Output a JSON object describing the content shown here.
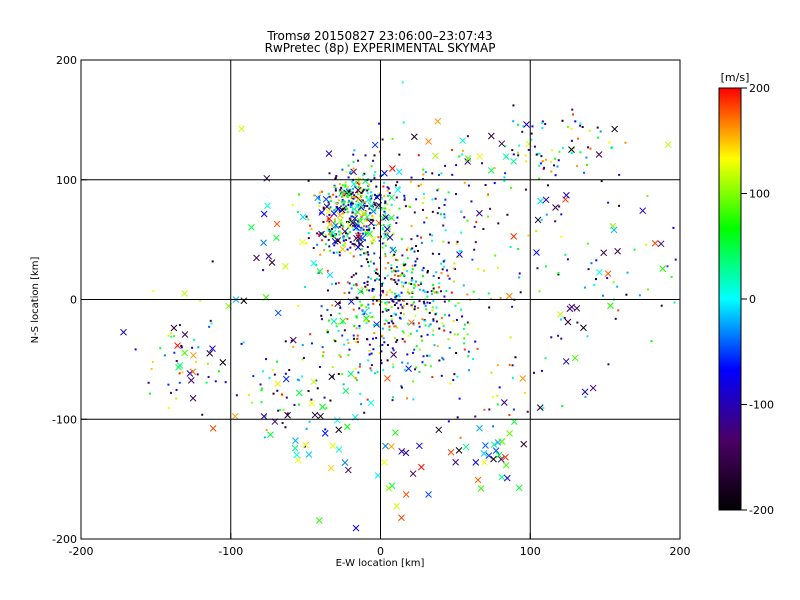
{
  "chart_data": {
    "type": "scatter",
    "title": "Tromsø 20150827 23:06:00–23:07:43",
    "subtitle": "RwPretec (8p) EXPERIMENTAL SKYMAP",
    "xlabel": "E-W location [km]",
    "ylabel": "N-S location [km]",
    "xlim": [
      -200,
      200
    ],
    "ylim": [
      -200,
      200
    ],
    "x_ticks": [
      -200,
      -100,
      0,
      100,
      200
    ],
    "y_ticks": [
      -200,
      -100,
      0,
      100,
      200
    ],
    "grid": true,
    "colorbar": {
      "label": "[m/s]",
      "range": [
        -200,
        200
      ],
      "ticks": [
        200,
        100,
        0,
        -100,
        -200
      ],
      "colormap": [
        "#000000",
        "#4b0066",
        "#0000ff",
        "#00ffff",
        "#00ff00",
        "#ffff00",
        "#ff0000"
      ]
    },
    "series": [
      {
        "marker": "dot",
        "clusters": [
          {
            "x": -15,
            "y": 82,
            "sx": 12,
            "sy": 14,
            "n": 260
          },
          {
            "x": -20,
            "y": 55,
            "sx": 14,
            "sy": 10,
            "n": 120
          },
          {
            "x": 15,
            "y": 10,
            "sx": 20,
            "sy": 18,
            "n": 260
          },
          {
            "x": 0,
            "y": -35,
            "sx": 28,
            "sy": 20,
            "n": 180
          },
          {
            "x": 30,
            "y": 60,
            "sx": 40,
            "sy": 40,
            "n": 200
          },
          {
            "x": 120,
            "y": 130,
            "sx": 22,
            "sy": 15,
            "n": 70
          },
          {
            "x": 140,
            "y": 10,
            "sx": 35,
            "sy": 35,
            "n": 60
          },
          {
            "x": -130,
            "y": -45,
            "sx": 15,
            "sy": 20,
            "n": 40
          },
          {
            "x": -60,
            "y": -80,
            "sx": 20,
            "sy": 20,
            "n": 50
          },
          {
            "x": 70,
            "y": -60,
            "sx": 30,
            "sy": 25,
            "n": 50
          }
        ]
      },
      {
        "marker": "x",
        "clusters": [
          {
            "x": -15,
            "y": 75,
            "sx": 15,
            "sy": 20,
            "n": 70
          },
          {
            "x": 75,
            "y": -130,
            "sx": 12,
            "sy": 15,
            "n": 28
          },
          {
            "x": -125,
            "y": -55,
            "sx": 10,
            "sy": 15,
            "n": 14
          },
          {
            "x": 135,
            "y": 40,
            "sx": 40,
            "sy": 50,
            "n": 30
          },
          {
            "x": -40,
            "y": -110,
            "sx": 30,
            "sy": 25,
            "n": 30
          },
          {
            "x": 10,
            "y": -150,
            "sx": 20,
            "sy": 25,
            "n": 18
          },
          {
            "x": 60,
            "y": 130,
            "sx": 25,
            "sy": 15,
            "n": 14
          },
          {
            "x": -70,
            "y": 40,
            "sx": 25,
            "sy": 30,
            "n": 14
          },
          {
            "x": 0,
            "y": 0,
            "sx": 80,
            "sy": 80,
            "n": 50
          }
        ]
      }
    ]
  }
}
